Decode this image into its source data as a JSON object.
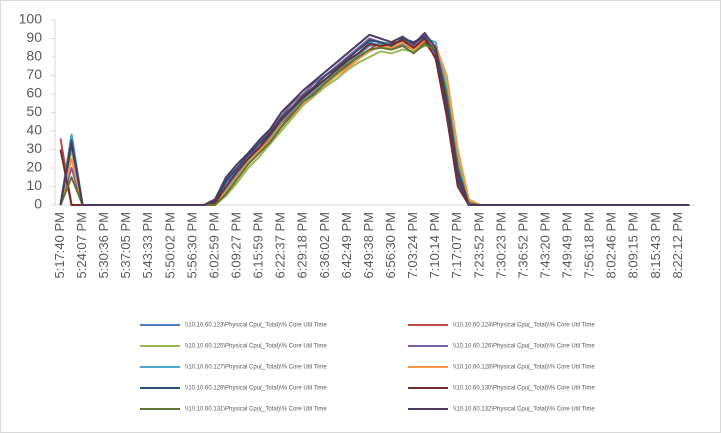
{
  "chart_data": {
    "type": "line",
    "categories": [
      "5:17:40 PM",
      null,
      "5:24:07 PM",
      null,
      "5:30:36 PM",
      null,
      "5:37:05 PM",
      null,
      "5:43:33 PM",
      null,
      "5:50:02 PM",
      null,
      "5:56:30 PM",
      null,
      "6:02:59 PM",
      null,
      "6:09:27 PM",
      null,
      "6:15:59 PM",
      null,
      "6:22:37 PM",
      null,
      "6:29:18 PM",
      null,
      "6:36:02 PM",
      null,
      "6:42:49 PM",
      null,
      "6:49:38 PM",
      null,
      "6:56:30 PM",
      null,
      "7:03:24 PM",
      null,
      "7:10:14 PM",
      null,
      "7:17:07 PM",
      null,
      "7:23:52 PM",
      null,
      "7:30:23 PM",
      null,
      "7:36:52 PM",
      null,
      "7:43:20 PM",
      null,
      "7:49:49 PM",
      null,
      "7:56:18 PM",
      null,
      "8:02:46 PM",
      null,
      "8:09:15 PM",
      null,
      "8:15:43 PM",
      null,
      "8:22:12 PM",
      null
    ],
    "ylim": [
      0,
      100
    ],
    "yticks": [
      0,
      10,
      20,
      30,
      40,
      50,
      60,
      70,
      80,
      90,
      100
    ],
    "series": [
      {
        "name": "\\\\10.10.60.123\\Physical Cpu(_Total)\\% Core Util Time",
        "color": "#4a7ebb",
        "values": [
          0,
          38,
          0,
          0,
          0,
          0,
          0,
          0,
          0,
          0,
          0,
          0,
          0,
          0,
          2,
          12,
          19,
          25,
          33,
          38,
          47,
          52,
          58,
          64,
          66,
          74,
          78,
          82,
          88,
          86,
          84,
          90,
          87,
          91,
          83,
          58,
          20,
          1,
          0,
          0,
          0,
          0,
          0,
          0,
          0,
          0,
          0,
          0,
          0,
          0,
          0,
          0,
          0,
          0,
          0,
          0,
          0,
          0
        ]
      },
      {
        "name": "\\\\10.10.60.124\\Physical Cpu(_Total)\\% Core Util Time",
        "color": "#be4b48",
        "values": [
          36,
          0,
          0,
          0,
          0,
          0,
          0,
          0,
          0,
          0,
          0,
          0,
          0,
          0,
          1,
          8,
          16,
          22,
          30,
          36,
          44,
          50,
          55,
          61,
          68,
          71,
          75,
          79,
          84,
          88,
          85,
          87,
          84,
          88,
          80,
          50,
          12,
          0,
          0,
          0,
          0,
          0,
          0,
          0,
          0,
          0,
          0,
          0,
          0,
          0,
          0,
          0,
          0,
          0,
          0,
          0,
          0,
          0
        ]
      },
      {
        "name": "\\\\10.10.60.125\\Physical Cpu(_Total)\\% Core Util Time",
        "color": "#98b954",
        "values": [
          0,
          30,
          0,
          0,
          0,
          0,
          0,
          0,
          0,
          0,
          0,
          0,
          0,
          0,
          0,
          5,
          12,
          20,
          26,
          33,
          40,
          47,
          54,
          59,
          64,
          68,
          73,
          77,
          80,
          83,
          82,
          84,
          83,
          86,
          85,
          66,
          25,
          2,
          0,
          0,
          0,
          0,
          0,
          0,
          0,
          0,
          0,
          0,
          0,
          0,
          0,
          0,
          0,
          0,
          0,
          0,
          0,
          0
        ]
      },
      {
        "name": "\\\\10.10.60.126\\Physical Cpu(_Total)\\% Core Util Time",
        "color": "#7d60a0",
        "values": [
          0,
          20,
          0,
          0,
          0,
          0,
          0,
          0,
          0,
          0,
          0,
          0,
          0,
          0,
          3,
          14,
          20,
          27,
          34,
          40,
          48,
          55,
          60,
          66,
          70,
          75,
          80,
          85,
          90,
          88,
          87,
          89,
          86,
          92,
          84,
          55,
          16,
          0,
          0,
          0,
          0,
          0,
          0,
          0,
          0,
          0,
          0,
          0,
          0,
          0,
          0,
          0,
          0,
          0,
          0,
          0,
          0,
          0
        ]
      },
      {
        "name": "\\\\10.10.60.127\\Physical Cpu(_Total)\\% Core Util Time",
        "color": "#46aac5",
        "values": [
          0,
          38,
          0,
          0,
          0,
          0,
          0,
          0,
          0,
          0,
          0,
          0,
          0,
          0,
          1,
          9,
          17,
          24,
          31,
          37,
          45,
          51,
          57,
          62,
          67,
          72,
          77,
          81,
          86,
          87,
          88,
          87,
          85,
          90,
          88,
          62,
          22,
          1,
          0,
          0,
          0,
          0,
          0,
          0,
          0,
          0,
          0,
          0,
          0,
          0,
          0,
          0,
          0,
          0,
          0,
          0,
          0,
          0
        ]
      },
      {
        "name": "\\\\10.10.60.128\\Physical Cpu(_Total)\\% Core Util Time",
        "color": "#f79646",
        "values": [
          0,
          25,
          0,
          0,
          0,
          0,
          0,
          0,
          0,
          0,
          0,
          0,
          0,
          0,
          1,
          7,
          15,
          23,
          29,
          35,
          43,
          48,
          55,
          60,
          65,
          70,
          74,
          79,
          83,
          86,
          85,
          88,
          84,
          89,
          86,
          70,
          30,
          3,
          0,
          0,
          0,
          0,
          0,
          0,
          0,
          0,
          0,
          0,
          0,
          0,
          0,
          0,
          0,
          0,
          0,
          0,
          0,
          0
        ]
      },
      {
        "name": "\\\\10.10.60.129\\Physical Cpu(_Total)\\% Core Util Time",
        "color": "#2c4d75",
        "values": [
          0,
          35,
          0,
          0,
          0,
          0,
          0,
          0,
          0,
          0,
          0,
          0,
          0,
          0,
          2,
          13,
          20,
          27,
          33,
          39,
          47,
          53,
          59,
          64,
          70,
          74,
          79,
          84,
          89,
          88,
          86,
          90,
          88,
          91,
          82,
          52,
          14,
          0,
          0,
          0,
          0,
          0,
          0,
          0,
          0,
          0,
          0,
          0,
          0,
          0,
          0,
          0,
          0,
          0,
          0,
          0,
          0,
          0
        ]
      },
      {
        "name": "\\\\10.10.60.130\\Physical Cpu(_Total)\\% Core Util Time",
        "color": "#772c2a",
        "values": [
          30,
          0,
          0,
          0,
          0,
          0,
          0,
          0,
          0,
          0,
          0,
          0,
          0,
          0,
          1,
          10,
          18,
          25,
          31,
          38,
          46,
          52,
          58,
          63,
          68,
          73,
          78,
          82,
          87,
          86,
          87,
          89,
          85,
          90,
          79,
          48,
          10,
          0,
          0,
          0,
          0,
          0,
          0,
          0,
          0,
          0,
          0,
          0,
          0,
          0,
          0,
          0,
          0,
          0,
          0,
          0,
          0,
          0
        ]
      },
      {
        "name": "\\\\10.10.60.131\\Physical Cpu(_Total)\\% Core Util Time",
        "color": "#5f7530",
        "values": [
          0,
          15,
          0,
          0,
          0,
          0,
          0,
          0,
          0,
          0,
          0,
          0,
          0,
          0,
          0,
          6,
          14,
          22,
          28,
          34,
          42,
          49,
          56,
          60,
          66,
          71,
          76,
          80,
          84,
          85,
          84,
          86,
          82,
          87,
          84,
          60,
          20,
          1,
          0,
          0,
          0,
          0,
          0,
          0,
          0,
          0,
          0,
          0,
          0,
          0,
          0,
          0,
          0,
          0,
          0,
          0,
          0,
          0
        ]
      },
      {
        "name": "\\\\10.10.60.132\\Physical Cpu(_Total)\\% Core Util Time",
        "color": "#4d3b62",
        "values": [
          0,
          33,
          0,
          0,
          0,
          0,
          0,
          0,
          0,
          0,
          0,
          0,
          0,
          0,
          3,
          15,
          22,
          28,
          35,
          41,
          50,
          56,
          62,
          67,
          72,
          77,
          82,
          87,
          92,
          90,
          88,
          91,
          87,
          93,
          85,
          56,
          18,
          0,
          0,
          0,
          0,
          0,
          0,
          0,
          0,
          0,
          0,
          0,
          0,
          0,
          0,
          0,
          0,
          0,
          0,
          0,
          0,
          0
        ]
      }
    ]
  }
}
